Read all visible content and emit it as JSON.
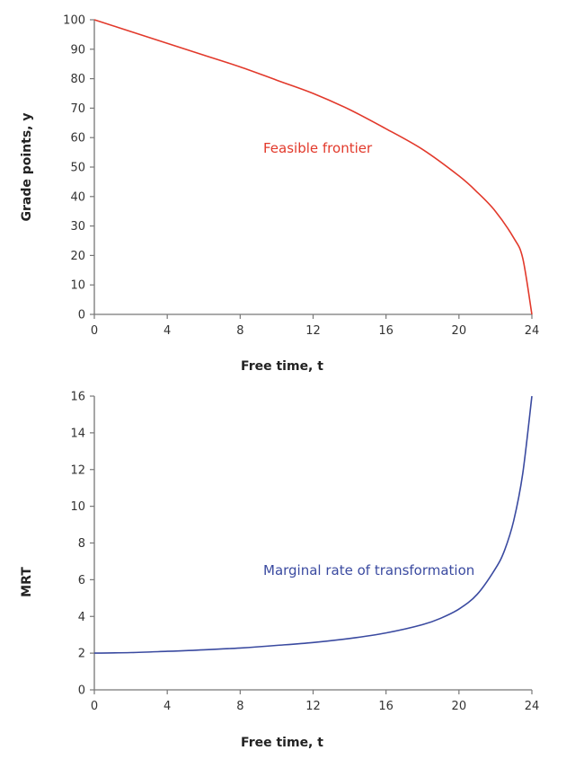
{
  "chart_data": [
    {
      "type": "line",
      "title": "",
      "xlabel": "Free time, t",
      "ylabel": "Grade points, y",
      "xlim": [
        0,
        24
      ],
      "ylim": [
        0,
        100
      ],
      "x_ticks": [
        0,
        4,
        8,
        12,
        16,
        20,
        24
      ],
      "y_ticks": [
        0,
        10,
        20,
        30,
        40,
        50,
        60,
        70,
        80,
        90,
        100
      ],
      "grid": false,
      "series": [
        {
          "name": "Feasible frontier",
          "color": "#e2392b",
          "x": [
            0,
            2,
            4,
            6,
            8,
            10,
            12,
            14,
            16,
            18,
            20,
            21,
            22,
            23,
            23.5,
            24
          ],
          "values": [
            100,
            96,
            92,
            88,
            84,
            79.5,
            75,
            69.5,
            63,
            56,
            47,
            41.5,
            35,
            26,
            19,
            0
          ]
        }
      ],
      "annotations": [
        {
          "text": "Feasible frontier",
          "x": 15.5,
          "y": 57,
          "color": "#e2392b"
        }
      ]
    },
    {
      "type": "line",
      "title": "",
      "xlabel": "Free time, t",
      "ylabel": "MRT",
      "xlim": [
        0,
        24
      ],
      "ylim": [
        0,
        16
      ],
      "x_ticks": [
        0,
        4,
        8,
        12,
        16,
        20,
        24
      ],
      "y_ticks": [
        0,
        2,
        4,
        6,
        8,
        10,
        12,
        14,
        16
      ],
      "grid": false,
      "series": [
        {
          "name": "Marginal rate of transformation",
          "color": "#3a4aa0",
          "x": [
            0,
            2,
            4,
            6,
            8,
            10,
            12,
            14,
            16,
            18,
            19,
            20,
            21,
            22,
            22.5,
            23,
            23.5,
            24
          ],
          "values": [
            2,
            2.03,
            2.1,
            2.18,
            2.28,
            2.42,
            2.58,
            2.8,
            3.1,
            3.55,
            3.9,
            4.4,
            5.2,
            6.6,
            7.6,
            9.2,
            11.8,
            16
          ]
        }
      ],
      "annotations": [
        {
          "text": "Marginal rate of transformation",
          "x": 17.7,
          "y": 6.5,
          "color": "#3a4aa0"
        }
      ]
    }
  ],
  "top": {
    "ylabel": "Grade points, y",
    "xlabel": "Free time, t",
    "series_label": "Feasible frontier",
    "x_ticks": [
      "0",
      "4",
      "8",
      "12",
      "16",
      "20",
      "24"
    ],
    "y_ticks": [
      "0",
      "10",
      "20",
      "30",
      "40",
      "50",
      "60",
      "70",
      "80",
      "90",
      "100"
    ]
  },
  "bottom": {
    "ylabel": "MRT",
    "xlabel": "Free time, t",
    "series_label": "Marginal rate of transformation",
    "x_ticks": [
      "0",
      "4",
      "8",
      "12",
      "16",
      "20",
      "24"
    ],
    "y_ticks": [
      "0",
      "2",
      "4",
      "6",
      "8",
      "10",
      "12",
      "14",
      "16"
    ]
  },
  "colors": {
    "frontier": "#e2392b",
    "mrt": "#3a4aa0",
    "axis": "#777777"
  }
}
